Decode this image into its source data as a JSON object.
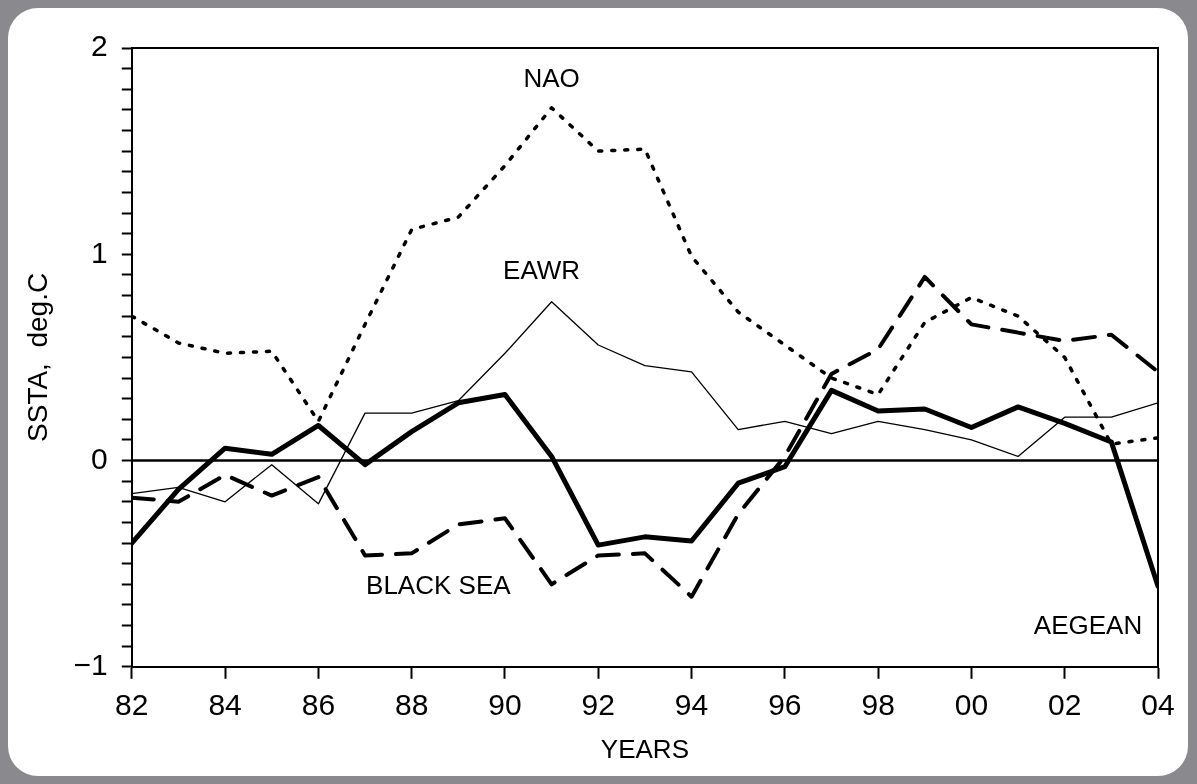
{
  "chart_data": {
    "type": "line",
    "xlabel": "YEARS",
    "ylabel": "SSTA,  deg.C",
    "x": [
      1982,
      1983,
      1984,
      1985,
      1986,
      1987,
      1988,
      1989,
      1990,
      1991,
      1992,
      1993,
      1994,
      1995,
      1996,
      1997,
      1998,
      1999,
      2000,
      2001,
      2002,
      2003,
      2004
    ],
    "series": [
      {
        "name": "AEGEAN",
        "color": "#000000",
        "line_style": "solid",
        "values": [
          -0.4,
          -0.14,
          0.06,
          0.03,
          0.17,
          -0.02,
          0.14,
          0.28,
          0.32,
          0.02,
          -0.41,
          -0.37,
          -0.39,
          -0.11,
          -0.03,
          0.34,
          0.24,
          0.25,
          0.16,
          0.26,
          0.18,
          0.09,
          -0.61
        ]
      },
      {
        "name": "BLACK SEA",
        "color": "#000000",
        "line_style": "dashed",
        "values": [
          -0.18,
          -0.2,
          -0.07,
          -0.17,
          -0.08,
          -0.46,
          -0.45,
          -0.31,
          -0.28,
          -0.6,
          -0.46,
          -0.45,
          -0.66,
          -0.26,
          0.02,
          0.42,
          0.54,
          0.89,
          0.66,
          0.62,
          0.58,
          0.61,
          0.43
        ]
      },
      {
        "name": "EAWR",
        "color": "#000000",
        "line_style": "solid",
        "values": [
          -0.16,
          -0.13,
          -0.2,
          -0.02,
          -0.21,
          0.23,
          0.23,
          0.29,
          0.52,
          0.77,
          0.56,
          0.46,
          0.43,
          0.15,
          0.19,
          0.13,
          0.19,
          0.15,
          0.1,
          0.02,
          0.21,
          0.21,
          0.28
        ]
      },
      {
        "name": "NAO",
        "color": "#000000",
        "line_style": "dotted",
        "values": [
          0.7,
          0.57,
          0.52,
          0.53,
          0.19,
          0.66,
          1.12,
          1.18,
          1.43,
          1.71,
          1.5,
          1.51,
          0.99,
          0.72,
          0.56,
          0.4,
          0.32,
          0.67,
          0.79,
          0.7,
          0.5,
          0.08,
          0.11
        ]
      }
    ],
    "xlim": [
      1982,
      2004
    ],
    "xticks": [
      {
        "value": 1982,
        "label": "82"
      },
      {
        "value": 1984,
        "label": "84"
      },
      {
        "value": 1986,
        "label": "86"
      },
      {
        "value": 1988,
        "label": "88"
      },
      {
        "value": 1990,
        "label": "90"
      },
      {
        "value": 1992,
        "label": "92"
      },
      {
        "value": 1994,
        "label": "94"
      },
      {
        "value": 1996,
        "label": "96"
      },
      {
        "value": 1998,
        "label": "98"
      },
      {
        "value": 2000,
        "label": "00"
      },
      {
        "value": 2002,
        "label": "02"
      },
      {
        "value": 2004,
        "label": "04"
      }
    ],
    "ylim": [
      -1,
      2
    ],
    "yticks": [
      {
        "value": -1,
        "label": "−1"
      },
      {
        "value": -0.9,
        "label": null
      },
      {
        "value": -0.8,
        "label": null
      },
      {
        "value": -0.7,
        "label": null
      },
      {
        "value": -0.6,
        "label": null
      },
      {
        "value": -0.5,
        "label": null
      },
      {
        "value": -0.4,
        "label": null
      },
      {
        "value": -0.3,
        "label": null
      },
      {
        "value": -0.2,
        "label": null
      },
      {
        "value": -0.1,
        "label": null
      },
      0,
      {
        "value": 0.1,
        "label": null
      },
      {
        "value": 0.2,
        "label": null
      },
      {
        "value": 0.3,
        "label": null
      },
      {
        "value": 0.4,
        "label": null
      },
      {
        "value": 0.5,
        "label": null
      },
      {
        "value": 0.6,
        "label": null
      },
      {
        "value": 0.7,
        "label": null
      },
      {
        "value": 0.8,
        "label": null
      },
      {
        "value": 0.9,
        "label": null
      },
      1,
      {
        "value": 1.1,
        "label": null
      },
      {
        "value": 1.2,
        "label": null
      },
      {
        "value": 1.3,
        "label": null
      },
      {
        "value": 1.4,
        "label": null
      },
      {
        "value": 1.5,
        "label": null
      },
      {
        "value": 1.6,
        "label": null
      },
      {
        "value": 1.7,
        "label": null
      },
      {
        "value": 1.8,
        "label": null
      },
      {
        "value": 1.9,
        "label": null
      },
      2
    ],
    "ref_lines": [
      {
        "axis": "y",
        "value": 0,
        "color": "#000000",
        "line_style": "solid"
      }
    ],
    "grid": false,
    "legend": false,
    "marker": "none"
  }
}
